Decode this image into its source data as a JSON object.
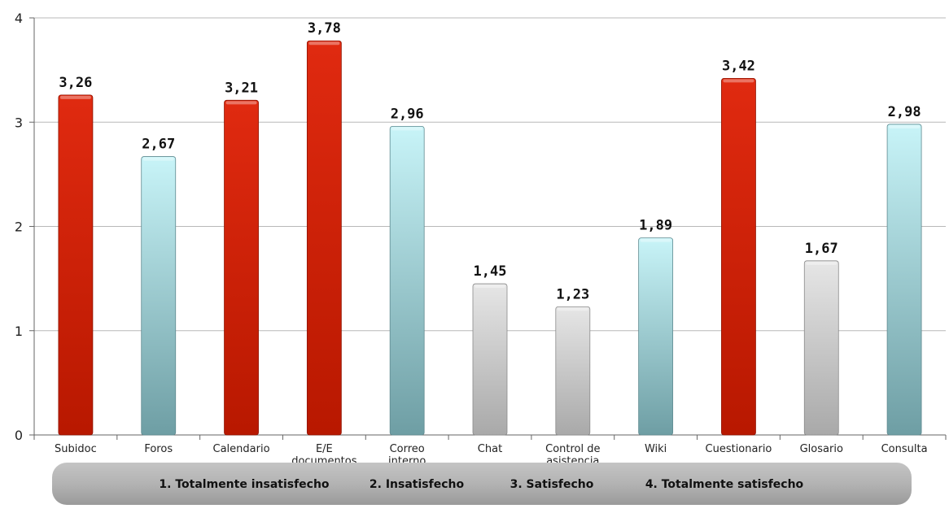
{
  "chart_data": {
    "type": "bar",
    "categories": [
      [
        "Subidoc"
      ],
      [
        "Foros"
      ],
      [
        "Calendario"
      ],
      [
        "E/E",
        "documentos"
      ],
      [
        "Correo",
        "interno"
      ],
      [
        "Chat"
      ],
      [
        "Control de",
        "asistencia"
      ],
      [
        "Wiki"
      ],
      [
        "Cuestionario"
      ],
      [
        "Glosario"
      ],
      [
        "Consulta"
      ]
    ],
    "values": [
      3.26,
      2.67,
      3.21,
      3.78,
      2.96,
      1.45,
      1.23,
      1.89,
      3.42,
      1.67,
      2.98
    ],
    "value_labels": [
      "3,26",
      "2,67",
      "3,21",
      "3,78",
      "2,96",
      "1,45",
      "1,23",
      "1,89",
      "3,42",
      "1,67",
      "2,98"
    ],
    "bar_styles": [
      "red",
      "cyan",
      "red",
      "red",
      "cyan",
      "gray",
      "gray",
      "cyan",
      "red",
      "gray",
      "cyan"
    ],
    "ylim": [
      0,
      4
    ],
    "yticks": [
      "0",
      "1",
      "2",
      "3",
      "4"
    ],
    "grid": true,
    "legend_items": [
      "1. Totalmente insatisfecho",
      "2.  Insatisfecho",
      "3. Satisfecho",
      "4. Totalmente satisfecho"
    ],
    "colors": {
      "red_top": "#e02a10",
      "red_bottom": "#b81800",
      "cyan_top": "#c8f4f8",
      "cyan_bottom": "#6e9ea4",
      "gray_top": "#e6e6e6",
      "gray_bottom": "#a9a9a9",
      "legend_bg": "#b5b5b5",
      "grid": "#b8b8b8"
    }
  }
}
